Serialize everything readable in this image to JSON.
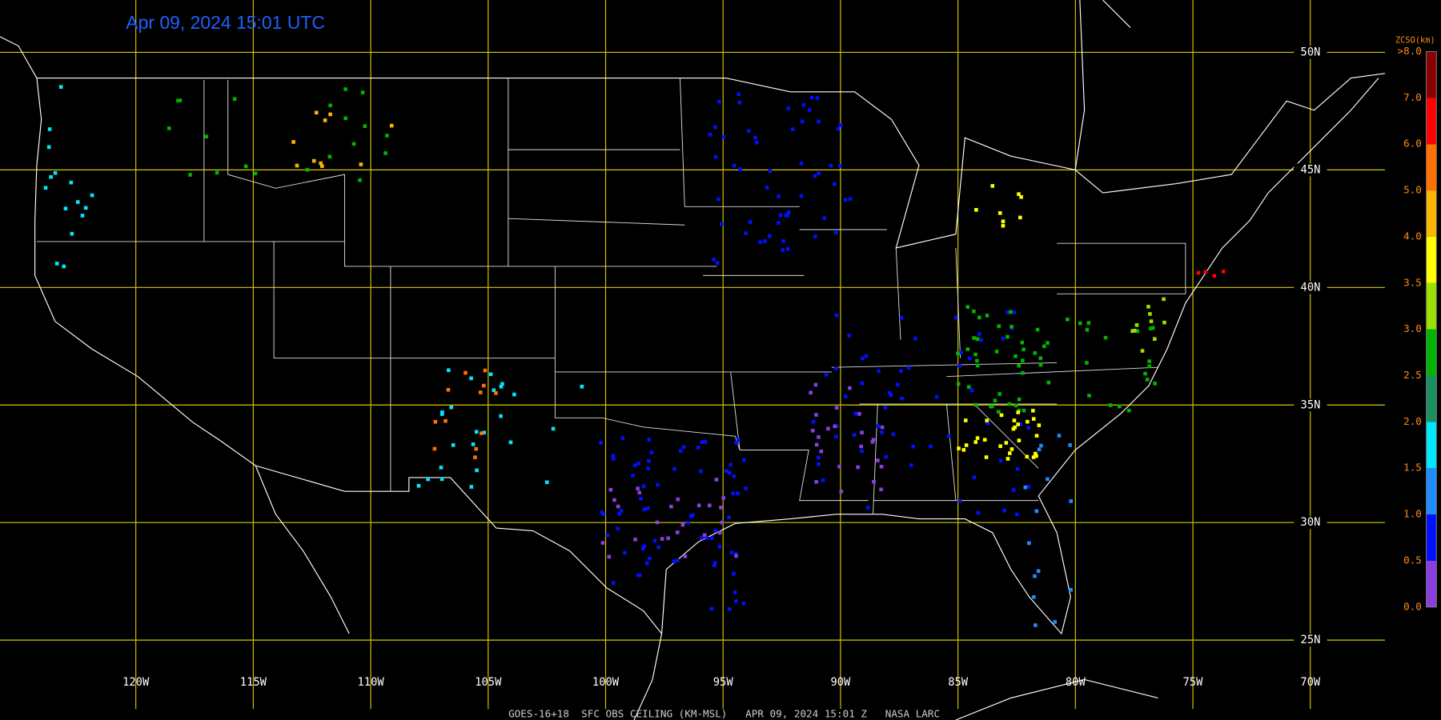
{
  "header": {
    "timestamp": "Apr 09, 2024 15:01 UTC"
  },
  "map": {
    "lon_ticks": [
      {
        "value": -120,
        "label": "120W"
      },
      {
        "value": -115,
        "label": "115W"
      },
      {
        "value": -110,
        "label": "110W"
      },
      {
        "value": -105,
        "label": "105W"
      },
      {
        "value": -100,
        "label": "100W"
      },
      {
        "value": -95,
        "label": "95W"
      },
      {
        "value": -90,
        "label": "90W"
      },
      {
        "value": -85,
        "label": "85W"
      },
      {
        "value": -80,
        "label": "80W"
      },
      {
        "value": -75,
        "label": "75W"
      },
      {
        "value": -70,
        "label": "70W"
      }
    ],
    "lat_ticks": [
      {
        "value": 50,
        "label": "50N"
      },
      {
        "value": 45,
        "label": "45N"
      },
      {
        "value": 40,
        "label": "40N"
      },
      {
        "value": 35,
        "label": "35N"
      },
      {
        "value": 30,
        "label": "30N"
      },
      {
        "value": 25,
        "label": "25N"
      }
    ],
    "grid_color": "#d8c800"
  },
  "legend": {
    "title": "ZCSO(km)",
    "labels": [
      "0.0",
      "0.5",
      "1.0",
      "1.5",
      "2.0",
      "2.5",
      "3.0",
      "3.5",
      "4.0",
      "5.0",
      "6.0",
      "7.0",
      ">8.0"
    ],
    "colors": [
      "#8a3ee0",
      "#0010ff",
      "#1e8cff",
      "#00e8ff",
      "#1a9060",
      "#00b400",
      "#9ae000",
      "#ffff00",
      "#ffb400",
      "#ff7000",
      "#ff0000",
      "#8b0000"
    ]
  },
  "footer": "GOES-16+18  SFC OBS CEILING (KM-MSL)   APR 09, 2024 15:01 Z   NASA LARC"
}
